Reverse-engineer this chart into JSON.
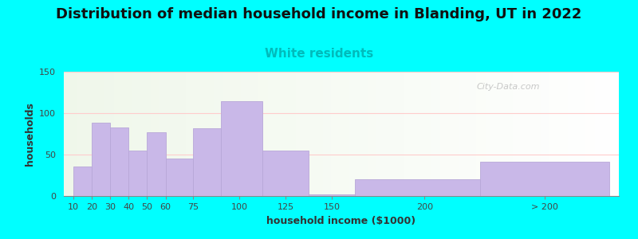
{
  "title": "Distribution of median household income in Blanding, UT in 2022",
  "subtitle": "White residents",
  "xlabel": "household income ($1000)",
  "ylabel": "households",
  "background_color": "#00FFFF",
  "bar_color": "#c9b8e8",
  "bar_edge_color": "#b8a8d8",
  "categories": [
    "10",
    "20",
    "30",
    "40",
    "50",
    "60",
    "75",
    "100",
    "125",
    "150",
    "200",
    "> 200"
  ],
  "values": [
    36,
    88,
    83,
    55,
    77,
    45,
    82,
    114,
    55,
    2,
    20,
    41
  ],
  "ylim": [
    0,
    150
  ],
  "yticks": [
    0,
    50,
    100,
    150
  ],
  "title_fontsize": 13,
  "subtitle_fontsize": 11,
  "subtitle_color": "#00BBBB",
  "axis_label_fontsize": 9,
  "tick_fontsize": 8,
  "watermark": "City-Data.com",
  "grid_color": "#ffcccc",
  "left_edges": [
    10,
    20,
    30,
    40,
    50,
    60,
    75,
    90,
    112.5,
    137.5,
    162.5,
    230
  ],
  "bar_widths": [
    10,
    10,
    10,
    10,
    10,
    15,
    15,
    22.5,
    25,
    25,
    67.5,
    70
  ],
  "xtick_positions": [
    10,
    20,
    30,
    40,
    50,
    60,
    75,
    100,
    125,
    150,
    200,
    265
  ],
  "xlim_left": 5,
  "xlim_right": 305
}
